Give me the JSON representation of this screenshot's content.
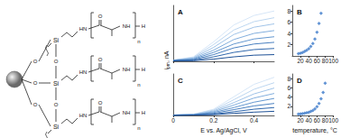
{
  "diagram": {
    "atoms": {
      "silicon": "Si",
      "oxygen": "O",
      "amide": "HN",
      "carbonyl": "O",
      "amine": "NH",
      "terminus": "H",
      "repeat": "n"
    }
  },
  "shared_labels": {
    "ylabel": {
      "symbol": "i",
      "subscript": "pm",
      "unit": ", nA"
    }
  },
  "chart_data": [
    {
      "title": "A",
      "type": "line",
      "x": [
        0,
        0.1,
        0.2,
        0.3,
        0.4,
        0.5
      ],
      "series": [
        {
          "color": "#d6e6f7",
          "values": [
            0.2,
            0.8,
            3.5,
            6.5,
            8.2,
            9.0
          ]
        },
        {
          "color": "#bcd6f0",
          "values": [
            0.2,
            0.7,
            3.0,
            5.6,
            7.1,
            7.8
          ]
        },
        {
          "color": "#a0c3e8",
          "values": [
            0.2,
            0.6,
            2.5,
            4.8,
            6.1,
            6.7
          ]
        },
        {
          "color": "#82aedd",
          "values": [
            0.2,
            0.5,
            2.0,
            3.9,
            5.0,
            5.5
          ]
        },
        {
          "color": "#6497cf",
          "values": [
            0.1,
            0.4,
            1.6,
            3.1,
            4.0,
            4.4
          ]
        },
        {
          "color": "#4a80c0",
          "values": [
            0.1,
            0.3,
            1.2,
            2.4,
            3.1,
            3.4
          ]
        },
        {
          "color": "#3168ad",
          "values": [
            0.1,
            0.2,
            0.8,
            1.6,
            2.1,
            2.3
          ]
        },
        {
          "color": "#1d5096",
          "values": [
            0.1,
            0.1,
            0.4,
            0.8,
            1.1,
            1.2
          ]
        }
      ],
      "xlim": [
        0,
        0.5
      ],
      "xticks": [
        0,
        0.2,
        0.4
      ],
      "ylim": [
        0,
        10
      ],
      "yticks": [],
      "tick_labels": false,
      "grid": false
    },
    {
      "title": "B",
      "type": "scatter",
      "x": [
        15,
        20,
        25,
        30,
        35,
        40,
        45,
        50,
        55,
        60,
        65,
        70
      ],
      "values": [
        0.4,
        0.5,
        0.6,
        0.8,
        1.0,
        1.3,
        1.7,
        2.2,
        3.0,
        4.2,
        5.8,
        7.6
      ],
      "color": "#3a78c9",
      "marker": "diamond",
      "xlim": [
        0,
        100
      ],
      "xticks": [
        20,
        40,
        60,
        80,
        100
      ],
      "ylim": [
        0,
        9
      ],
      "yticks": [
        2,
        4,
        6,
        8
      ],
      "grid": false
    },
    {
      "title": "C",
      "type": "line",
      "x": [
        0,
        0.1,
        0.2,
        0.3,
        0.4,
        0.5
      ],
      "series": [
        {
          "color": "#d6e6f7",
          "values": [
            0.1,
            0.3,
            1.5,
            4.5,
            7.5,
            9.2
          ]
        },
        {
          "color": "#bcd6f0",
          "values": [
            0.1,
            0.3,
            1.3,
            3.8,
            6.3,
            7.9
          ]
        },
        {
          "color": "#a0c3e8",
          "values": [
            0.1,
            0.2,
            1.1,
            3.1,
            5.2,
            6.6
          ]
        },
        {
          "color": "#82aedd",
          "values": [
            0.1,
            0.2,
            0.9,
            2.5,
            4.2,
            5.3
          ]
        },
        {
          "color": "#6497cf",
          "values": [
            0.1,
            0.2,
            0.7,
            1.9,
            3.2,
            4.1
          ]
        },
        {
          "color": "#4a80c0",
          "values": [
            0.0,
            0.1,
            0.5,
            1.4,
            2.3,
            2.9
          ]
        },
        {
          "color": "#3168ad",
          "values": [
            0.0,
            0.1,
            0.3,
            0.9,
            1.5,
            1.9
          ]
        },
        {
          "color": "#1d5096",
          "values": [
            0.0,
            0.1,
            0.2,
            0.5,
            0.8,
            1.0
          ]
        }
      ],
      "xlabel": "E vs. Ag/AgCl, V",
      "xlim": [
        0,
        0.5
      ],
      "xticks": [
        0,
        0.2,
        0.4
      ],
      "ylim": [
        0,
        10
      ],
      "yticks": [],
      "tick_labels": "x",
      "grid": false
    },
    {
      "title": "D",
      "type": "scatter",
      "x": [
        15,
        20,
        25,
        30,
        35,
        40,
        45,
        50,
        55,
        60,
        65,
        70,
        75,
        80
      ],
      "values": [
        0.3,
        0.35,
        0.4,
        0.5,
        0.6,
        0.7,
        0.9,
        1.1,
        1.4,
        1.9,
        2.6,
        3.6,
        5.0,
        7.0
      ],
      "color": "#3a78c9",
      "marker": "diamond",
      "xlabel": "temperature, °C",
      "xlim": [
        0,
        100
      ],
      "xticks": [
        20,
        40,
        60,
        80,
        100
      ],
      "ylim": [
        0,
        9
      ],
      "yticks": [
        2,
        4,
        6,
        8
      ],
      "grid": false
    }
  ]
}
